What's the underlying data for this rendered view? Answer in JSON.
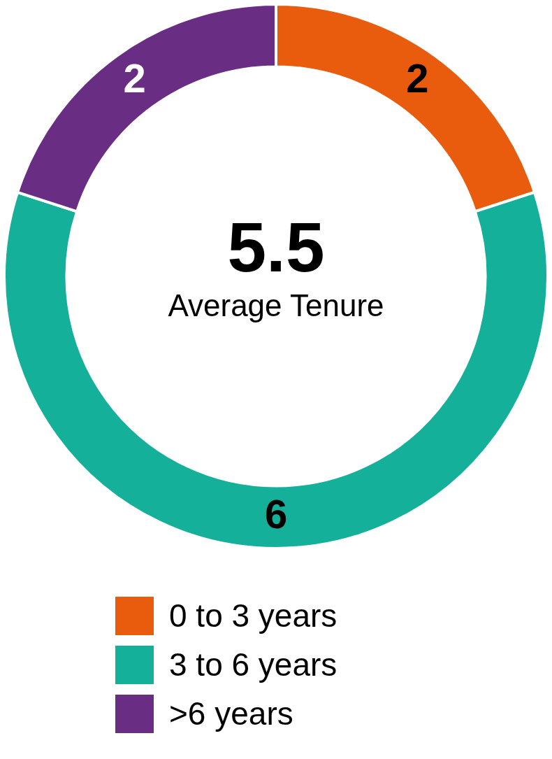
{
  "chart_data": {
    "type": "donut",
    "categories": [
      "0 to 3 years",
      "3 to 6 years",
      ">6 years"
    ],
    "values": [
      2,
      6,
      2
    ],
    "colors": [
      "#e95c0e",
      "#14b09a",
      "#692d84"
    ],
    "data_labels": true,
    "legend": "bottom",
    "annotations": [
      "5.5",
      "Average Tenure"
    ]
  }
}
